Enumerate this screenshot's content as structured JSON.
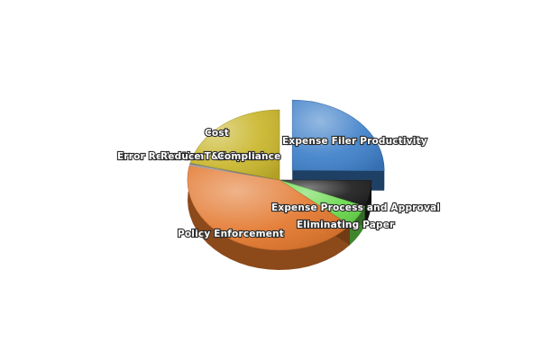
{
  "chart_data": {
    "type": "pie",
    "style": "3d exploded",
    "title": "",
    "legend": "none",
    "labels_on_slices": true,
    "slices": [
      {
        "label": "Expense Filer Productivity",
        "value": 25,
        "color": "#3d7fc9",
        "exploded": true
      },
      {
        "label": "Expense Process and Approval",
        "value": 6,
        "color": "#1c1c1c",
        "exploded": false
      },
      {
        "label": "Eliminating Paper",
        "value": 5,
        "color": "#66d84a",
        "exploded": false
      },
      {
        "label": "Policy Enforcement",
        "value": 42,
        "color": "#e2752a",
        "exploded": false
      },
      {
        "label": "Error Reduction",
        "value": 0.2,
        "color": "#c0c0c0",
        "exploded": false
      },
      {
        "label": "Reduce T&E Spend",
        "value": 0.2,
        "color": "#9a9a9a",
        "exploded": false
      },
      {
        "label": "Compliance",
        "value": 0.2,
        "color": "#7a7a7a",
        "exploded": false
      },
      {
        "label": "Cost",
        "value": 21,
        "color": "#c9b62a",
        "exploded": false
      }
    ]
  }
}
